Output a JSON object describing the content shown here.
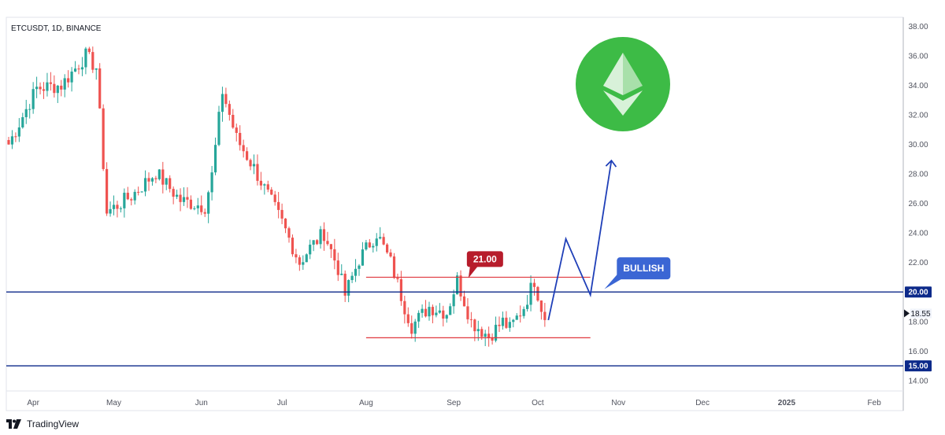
{
  "footer": {
    "brand": "TradingView",
    "logo_icon": "tradingview-logo-icon"
  },
  "chart_data": {
    "type": "candlestick",
    "title": "ETCUSDT, 1D, BINANCE",
    "symbol": "ETCUSDT",
    "interval": "1D",
    "exchange": "BINANCE",
    "ylim": [
      13.3,
      38.6
    ],
    "y_ticks": [
      "14.00",
      "16.00",
      "18.00",
      "20.00",
      "22.00",
      "24.00",
      "26.00",
      "28.00",
      "30.00",
      "32.00",
      "34.00",
      "36.00",
      "38.00"
    ],
    "x_ticks": [
      "Apr",
      "May",
      "Jun",
      "Jul",
      "Aug",
      "Sep",
      "Oct",
      "Nov",
      "Dec",
      "2025",
      "Feb"
    ],
    "last_price": "18.55",
    "up_color": "#26a69a",
    "down_color": "#ef5350",
    "levels": [
      {
        "value": 20.0,
        "label": "20.00",
        "color": "#0d2a8a"
      },
      {
        "value": 15.0,
        "label": "15.00",
        "color": "#0d2a8a"
      }
    ],
    "range_lines": [
      {
        "value": 21.0,
        "color": "#e0383e"
      },
      {
        "value": 16.9,
        "color": "#e0383e"
      }
    ],
    "annotations": [
      {
        "text": "21.00",
        "color": "#b71c2b"
      },
      {
        "text": "BULLISH",
        "color": "#3b66d4"
      }
    ],
    "projection_path": [
      [
        18.1
      ],
      [
        23.6
      ],
      [
        19.8
      ],
      [
        28.9
      ]
    ],
    "coin_icon": "ethereum-classic-icon",
    "coin_color": "#3dbb46",
    "anchors": [
      [
        0,
        30.0
      ],
      [
        8,
        33.8
      ],
      [
        15,
        34.0
      ],
      [
        22,
        36.0
      ],
      [
        25,
        35.2
      ],
      [
        28,
        25.4
      ],
      [
        35,
        26.5
      ],
      [
        42,
        28.1
      ],
      [
        49,
        26.2
      ],
      [
        56,
        25.8
      ],
      [
        58,
        27.9
      ],
      [
        61,
        33.6
      ],
      [
        65,
        30.4
      ],
      [
        70,
        28.4
      ],
      [
        73,
        27.0
      ],
      [
        78,
        24.7
      ],
      [
        83,
        22.0
      ],
      [
        86,
        23.0
      ],
      [
        90,
        24.0
      ],
      [
        94,
        21.6
      ],
      [
        96,
        19.8
      ],
      [
        100,
        22.2
      ],
      [
        105,
        24.0
      ],
      [
        109,
        22.0
      ],
      [
        113,
        19.0
      ],
      [
        115,
        17.7
      ],
      [
        120,
        19.0
      ],
      [
        125,
        18.6
      ],
      [
        128,
        20.8
      ],
      [
        132,
        18.0
      ],
      [
        137,
        17.0
      ],
      [
        141,
        18.0
      ],
      [
        143,
        17.5
      ],
      [
        147,
        19.0
      ],
      [
        150,
        20.8
      ],
      [
        153,
        18.1
      ]
    ]
  }
}
